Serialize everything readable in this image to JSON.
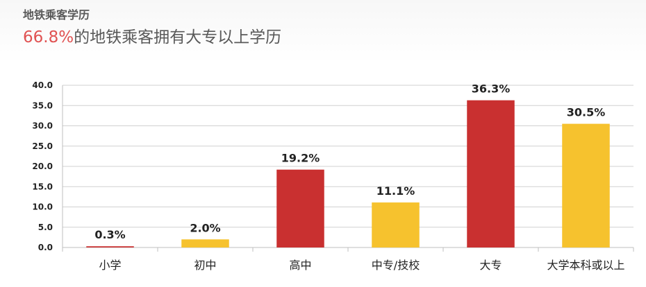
{
  "header": {
    "title": "地铁乘客学历",
    "subtitle_highlight": "66.8%",
    "subtitle_rest": "的地铁乘客拥有大专以上学历",
    "highlight_color": "#e05252"
  },
  "chart_data": {
    "type": "bar",
    "title": "",
    "xlabel": "",
    "ylabel": "",
    "ylim": [
      0,
      40
    ],
    "yticks": [
      "0.0",
      "5.0",
      "10.0",
      "15.0",
      "20.0",
      "25.0",
      "30.0",
      "35.0",
      "40.0"
    ],
    "grid": true,
    "legend": "none",
    "categories": [
      "小学",
      "初中",
      "高中",
      "中专/技校",
      "大专",
      "大学本科或以上"
    ],
    "values": [
      0.3,
      2.0,
      19.2,
      11.1,
      36.3,
      30.5
    ],
    "data_labels": [
      "0.3%",
      "2.0%",
      "19.2%",
      "11.1%",
      "36.3%",
      "30.5%"
    ],
    "colors": [
      "#c93030",
      "#f6c22e",
      "#c93030",
      "#f6c22e",
      "#c93030",
      "#f6c22e"
    ]
  }
}
